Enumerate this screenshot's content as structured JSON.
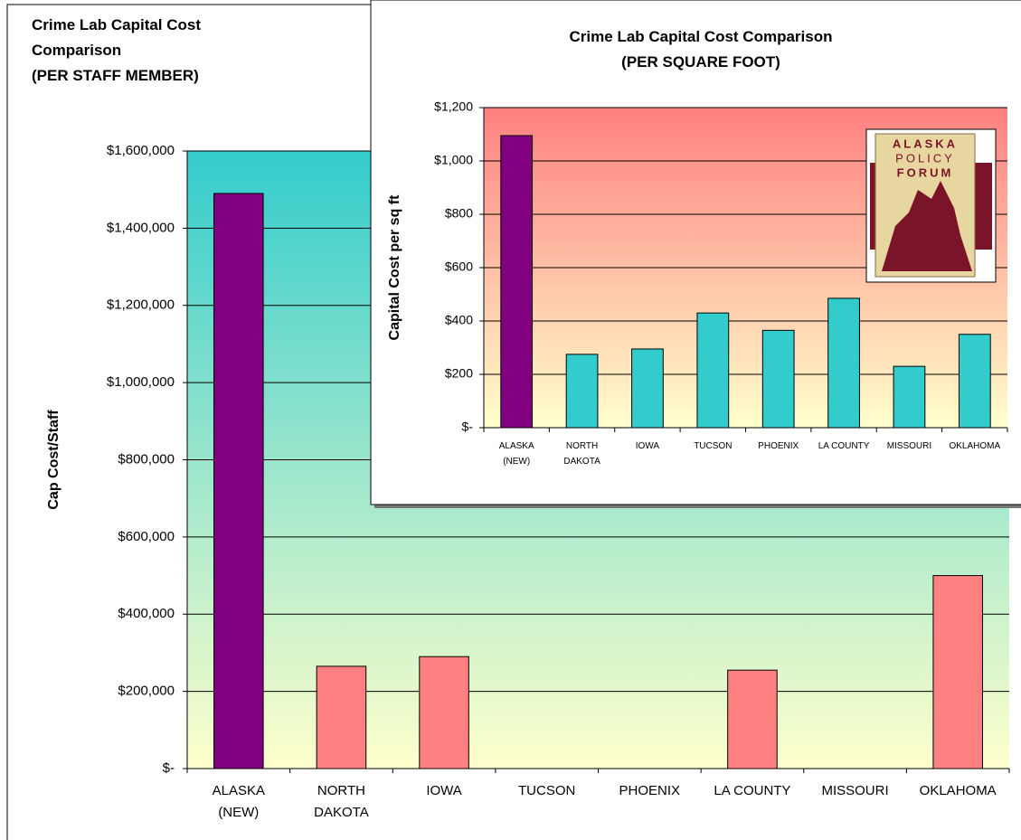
{
  "chart_data": [
    {
      "type": "bar",
      "title": "Crime Lab Capital Cost\nComparison\n(PER STAFF MEMBER)",
      "y_label": "Cap Cost/Staff",
      "categories": [
        "ALASKA\n(NEW)",
        "NORTH\nDAKOTA",
        "IOWA",
        "TUCSON",
        "PHOENIX",
        "LA COUNTY",
        "MISSOURI",
        "OKLAHOMA"
      ],
      "values": [
        1490000,
        265000,
        290000,
        null,
        null,
        255000,
        null,
        500000
      ],
      "colors": [
        "#800080",
        "#ff8080",
        "#ff8080",
        "#ff8080",
        "#ff8080",
        "#ff8080",
        "#ff8080",
        "#ff8080"
      ],
      "ylim": [
        0,
        1600000
      ],
      "yticks": [
        {
          "value": 0,
          "label": "$-"
        },
        {
          "value": 200000,
          "label": "$200,000"
        },
        {
          "value": 400000,
          "label": "$400,000"
        },
        {
          "value": 600000,
          "label": "$600,000"
        },
        {
          "value": 800000,
          "label": "$800,000"
        },
        {
          "value": 1000000,
          "label": "$1,000,000"
        },
        {
          "value": 1200000,
          "label": "$1,200,000"
        },
        {
          "value": 1400000,
          "label": "$1,400,000"
        },
        {
          "value": 1600000,
          "label": "$1,600,000"
        }
      ],
      "grid": true,
      "background": [
        "#33cccc",
        "#ffffcc"
      ]
    },
    {
      "type": "bar",
      "title": "Crime Lab Capital Cost Comparison\n(PER SQUARE FOOT)",
      "y_label": "Capital Cost per sq ft",
      "categories": [
        "ALASKA\n(NEW)",
        "NORTH\nDAKOTA",
        "IOWA",
        "TUCSON",
        "PHOENIX",
        "LA COUNTY",
        "MISSOURI",
        "OKLAHOMA"
      ],
      "values": [
        1095,
        275,
        295,
        430,
        365,
        485,
        230,
        350
      ],
      "colors": [
        "#800080",
        "#33cccc",
        "#33cccc",
        "#33cccc",
        "#33cccc",
        "#33cccc",
        "#33cccc",
        "#33cccc"
      ],
      "ylim": [
        0,
        1200
      ],
      "yticks": [
        {
          "value": 0,
          "label": "$-"
        },
        {
          "value": 200,
          "label": "$200"
        },
        {
          "value": 400,
          "label": "$400"
        },
        {
          "value": 600,
          "label": "$600"
        },
        {
          "value": 800,
          "label": "$800"
        },
        {
          "value": 1000,
          "label": "$1,000"
        },
        {
          "value": 1200,
          "label": "$1,200"
        }
      ],
      "grid": true,
      "background": [
        "#ff8080",
        "#ffffcc"
      ]
    }
  ],
  "logo": {
    "lines": [
      "ALASKA",
      "POLICY",
      "FORUM"
    ]
  }
}
